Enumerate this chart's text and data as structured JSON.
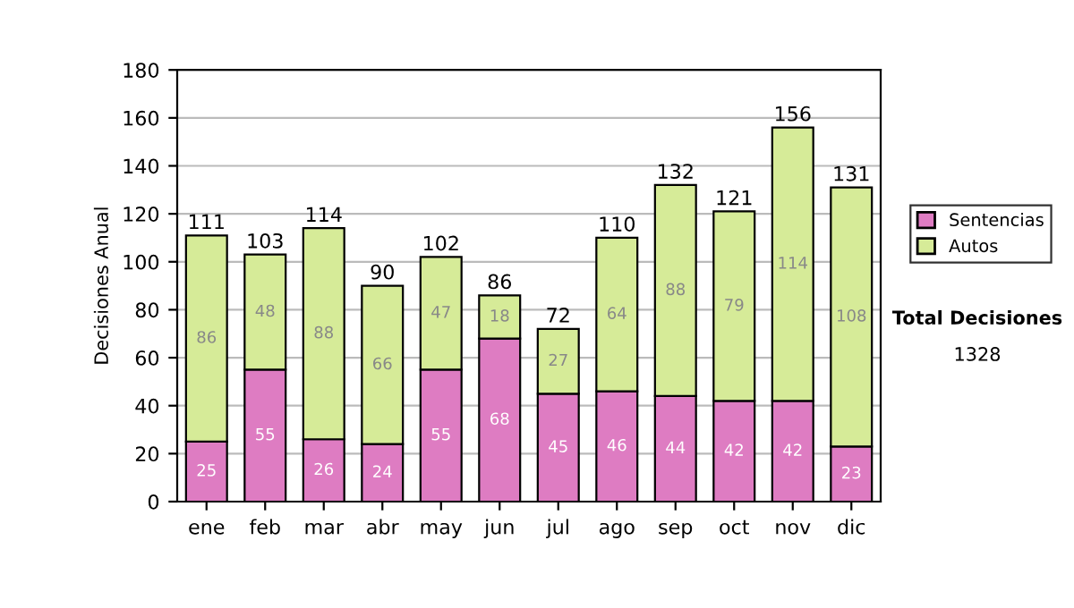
{
  "chart_data": {
    "type": "bar",
    "stacked": true,
    "ylabel": "Decisiones Anual",
    "categories": [
      "ene",
      "feb",
      "mar",
      "abr",
      "may",
      "jun",
      "jul",
      "ago",
      "sep",
      "oct",
      "nov",
      "dic"
    ],
    "series": [
      {
        "name": "Sentencias",
        "color": "#de7cc2",
        "values": [
          25,
          55,
          26,
          24,
          55,
          68,
          45,
          46,
          44,
          42,
          42,
          23
        ]
      },
      {
        "name": "Autos",
        "color": "#d6eb98",
        "values": [
          86,
          48,
          88,
          66,
          47,
          18,
          27,
          64,
          88,
          79,
          114,
          108
        ]
      }
    ],
    "totals": [
      "111",
      "103",
      "114",
      "90",
      "102",
      "86",
      "72",
      "110",
      "132",
      "121",
      "156",
      "131"
    ],
    "data_labels": true,
    "ylim": [
      0,
      180
    ],
    "yticks": [
      0,
      20,
      40,
      60,
      80,
      100,
      120,
      140,
      160,
      180
    ],
    "grid": "y",
    "legend": "right",
    "annotations": [
      "Total Decisiones",
      "1328"
    ]
  }
}
